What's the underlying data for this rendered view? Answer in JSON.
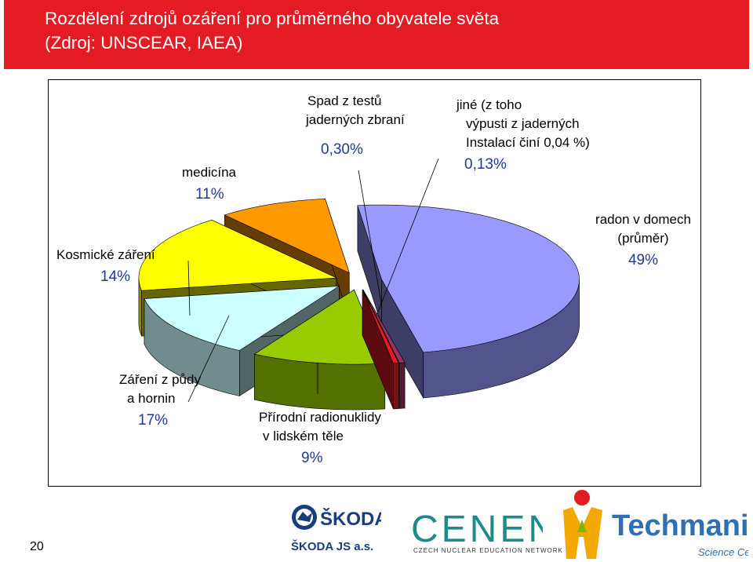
{
  "header": {
    "title_line1": "Rozdělení zdrojů ozáření pro průměrného obyvatele světa",
    "title_line2": "(Zdroj: UNSCEAR, IAEA)"
  },
  "page_number": "20",
  "chart_data": {
    "type": "pie",
    "title": "Rozdělení zdrojů ozáření pro průměrného obyvatele světa (Zdroj: UNSCEAR, IAEA)",
    "slices": [
      {
        "id": "radon",
        "label_lines": [
          "radon v domech",
          "(průměr)"
        ],
        "value": 49,
        "value_label": "49%",
        "color": "#9999ff"
      },
      {
        "id": "jine",
        "label_lines": [
          "jiné (z toho",
          "výpusti z jaderných",
          "Instalací činí 0,04 %)"
        ],
        "value": 0.13,
        "value_label": "0,13%",
        "color": "#993366"
      },
      {
        "id": "spad",
        "label_lines": [
          "Spad z testů",
          "jaderných zbraní"
        ],
        "value": 0.3,
        "value_label": "0,30%",
        "color": "#e41b23"
      },
      {
        "id": "medicina",
        "label_lines": [
          "medicína"
        ],
        "value": 11,
        "value_label": "11%",
        "color": "#99cc00"
      },
      {
        "id": "kosmicke",
        "label_lines": [
          "Kosmické záření"
        ],
        "value": 14,
        "value_label": "14%",
        "color": "#ccffff"
      },
      {
        "id": "puda",
        "label_lines": [
          "Záření z půdy",
          "a hornin"
        ],
        "value": 17,
        "value_label": "17%",
        "color": "#ffff00"
      },
      {
        "id": "prirodni",
        "label_lines": [
          "Přírodní radionuklidy",
          "v lidském těle"
        ],
        "value": 9,
        "value_label": "9%",
        "color": "#ff9900"
      }
    ],
    "legend": "none",
    "style": "3d exploded pie with leader lines"
  },
  "logos": {
    "skoda_wordmark": "ŠKODA",
    "skoda_caption": "ŠKODA JS a.s.",
    "cenen_wordmark": "CENEN",
    "cenen_caption": "CZECH NUCLEAR EDUCATION NETWORK",
    "techmania_wordmark": "Techmania",
    "techmania_caption": "Science Center",
    "skoda_color": "#1a3d7c",
    "cenen_red": "#e41b23",
    "cenen_teal": "#1e8a8a",
    "techmania_blue": "#2f6fb5"
  }
}
